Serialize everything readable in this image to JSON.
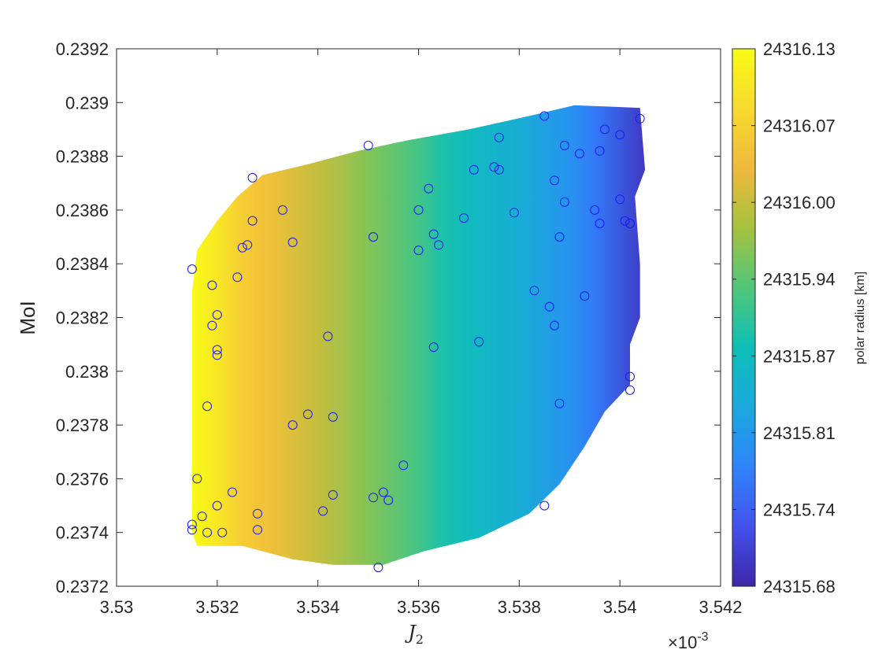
{
  "chart_data": {
    "type": "scatter",
    "title": "",
    "xlabel": "J2",
    "xlabel_main": "J",
    "xlabel_sub": "2",
    "ylabel": "MoI",
    "colorbar_label": "polar radius [km]",
    "x_multiplier_base": "×10",
    "x_multiplier_exp": "-3",
    "xlim": [
      3.53,
      3.542
    ],
    "ylim": [
      0.2372,
      0.2392
    ],
    "xticks": [
      3.53,
      3.532,
      3.534,
      3.536,
      3.538,
      3.54,
      3.542
    ],
    "xtick_labels": [
      "3.53",
      "3.532",
      "3.534",
      "3.536",
      "3.538",
      "3.54",
      "3.542"
    ],
    "yticks": [
      0.2372,
      0.2374,
      0.2376,
      0.2378,
      0.238,
      0.2382,
      0.2384,
      0.2386,
      0.2388,
      0.239,
      0.2392
    ],
    "ytick_labels": [
      "0.2372",
      "0.2374",
      "0.2376",
      "0.2378",
      "0.238",
      "0.2382",
      "0.2384",
      "0.2386",
      "0.2388",
      "0.239",
      "0.2392"
    ],
    "colorbar_ticks": [
      "24316.13",
      "24316.07",
      "24316.00",
      "24315.94",
      "24315.87",
      "24315.81",
      "24315.74",
      "24315.68"
    ],
    "colorbar_range": [
      24315.68,
      24316.13
    ],
    "colormap": "parula",
    "colormap_stops": [
      "#3e26a8",
      "#4352ec",
      "#2f84fb",
      "#1ba9dd",
      "#0ebfb6",
      "#50c77a",
      "#a6c23f",
      "#f0b93c",
      "#f8da2f",
      "#f9fb15"
    ],
    "marker_color": "#1a1aef",
    "grid": false,
    "legend": "none",
    "region_boundary": [
      [
        3.5315,
        0.2374
      ],
      [
        3.5316,
        0.23735
      ],
      [
        3.5325,
        0.23735
      ],
      [
        3.5335,
        0.2373
      ],
      [
        3.5343,
        0.23728
      ],
      [
        3.5353,
        0.23728
      ],
      [
        3.5361,
        0.23733
      ],
      [
        3.5372,
        0.23738
      ],
      [
        3.5382,
        0.23747
      ],
      [
        3.5388,
        0.23758
      ],
      [
        3.5393,
        0.23772
      ],
      [
        3.5397,
        0.23785
      ],
      [
        3.5402,
        0.23795
      ],
      [
        3.5402,
        0.2381
      ],
      [
        3.5404,
        0.2382
      ],
      [
        3.5404,
        0.2384
      ],
      [
        3.5403,
        0.23865
      ],
      [
        3.5405,
        0.23875
      ],
      [
        3.5404,
        0.23898
      ],
      [
        3.5391,
        0.23899
      ],
      [
        3.5382,
        0.23895
      ],
      [
        3.537,
        0.2389
      ],
      [
        3.5358,
        0.23886
      ],
      [
        3.5348,
        0.23882
      ],
      [
        3.5338,
        0.23877
      ],
      [
        3.5329,
        0.23873
      ],
      [
        3.5324,
        0.23865
      ],
      [
        3.532,
        0.23856
      ],
      [
        3.5316,
        0.23845
      ],
      [
        3.5315,
        0.2383
      ]
    ],
    "field_x": [
      3.5315,
      3.532,
      3.5325,
      3.533,
      3.534,
      3.535,
      3.536,
      3.5365,
      3.537,
      3.538,
      3.539,
      3.5395,
      3.5405
    ],
    "field_values": [
      24316.13,
      24316.1,
      24316.06,
      24316.04,
      24316.0,
      24315.96,
      24315.92,
      24315.89,
      24315.87,
      24315.84,
      24315.8,
      24315.77,
      24315.7
    ],
    "points": [
      [
        3.5315,
        0.23838
      ],
      [
        3.5315,
        0.23743
      ],
      [
        3.5315,
        0.23741
      ],
      [
        3.5316,
        0.2376
      ],
      [
        3.5317,
        0.23746
      ],
      [
        3.5318,
        0.23787
      ],
      [
        3.5318,
        0.2374
      ],
      [
        3.5319,
        0.23817
      ],
      [
        3.5319,
        0.23832
      ],
      [
        3.532,
        0.23808
      ],
      [
        3.532,
        0.23806
      ],
      [
        3.532,
        0.2375
      ],
      [
        3.532,
        0.23821
      ],
      [
        3.5321,
        0.2374
      ],
      [
        3.5323,
        0.23755
      ],
      [
        3.5324,
        0.23835
      ],
      [
        3.5325,
        0.23846
      ],
      [
        3.5326,
        0.23847
      ],
      [
        3.5327,
        0.23856
      ],
      [
        3.5327,
        0.23872
      ],
      [
        3.5328,
        0.23747
      ],
      [
        3.5328,
        0.23741
      ],
      [
        3.5333,
        0.2386
      ],
      [
        3.5335,
        0.23848
      ],
      [
        3.5335,
        0.2378
      ],
      [
        3.5338,
        0.23784
      ],
      [
        3.5341,
        0.23748
      ],
      [
        3.5342,
        0.23813
      ],
      [
        3.5343,
        0.23783
      ],
      [
        3.5343,
        0.23754
      ],
      [
        3.535,
        0.23884
      ],
      [
        3.5351,
        0.2385
      ],
      [
        3.5351,
        0.23753
      ],
      [
        3.5352,
        0.23727
      ],
      [
        3.5353,
        0.23755
      ],
      [
        3.5354,
        0.23752
      ],
      [
        3.5357,
        0.23765
      ],
      [
        3.536,
        0.2386
      ],
      [
        3.536,
        0.23845
      ],
      [
        3.5362,
        0.23868
      ],
      [
        3.5363,
        0.23851
      ],
      [
        3.5363,
        0.23809
      ],
      [
        3.5364,
        0.23847
      ],
      [
        3.5369,
        0.23857
      ],
      [
        3.5371,
        0.23875
      ],
      [
        3.5372,
        0.23811
      ],
      [
        3.5375,
        0.23876
      ],
      [
        3.5376,
        0.23887
      ],
      [
        3.5376,
        0.23875
      ],
      [
        3.5379,
        0.23859
      ],
      [
        3.5383,
        0.2383
      ],
      [
        3.5385,
        0.2375
      ],
      [
        3.5385,
        0.23895
      ],
      [
        3.5386,
        0.23824
      ],
      [
        3.5387,
        0.23817
      ],
      [
        3.5387,
        0.23871
      ],
      [
        3.5388,
        0.2385
      ],
      [
        3.5388,
        0.23788
      ],
      [
        3.5389,
        0.23863
      ],
      [
        3.5389,
        0.23884
      ],
      [
        3.5392,
        0.23881
      ],
      [
        3.5393,
        0.23828
      ],
      [
        3.5395,
        0.2386
      ],
      [
        3.5396,
        0.23855
      ],
      [
        3.5396,
        0.23882
      ],
      [
        3.5397,
        0.2389
      ],
      [
        3.54,
        0.23888
      ],
      [
        3.54,
        0.23864
      ],
      [
        3.5401,
        0.23856
      ],
      [
        3.5402,
        0.23855
      ],
      [
        3.5402,
        0.23798
      ],
      [
        3.5402,
        0.23793
      ],
      [
        3.5404,
        0.23894
      ]
    ]
  }
}
